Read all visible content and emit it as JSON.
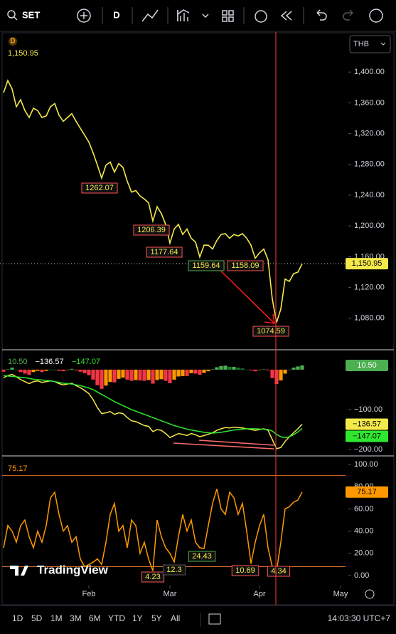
{
  "toolbar": {
    "symbol": "SET",
    "interval": "D"
  },
  "badge": "D",
  "currency": "THB",
  "watermark": "TradingView",
  "ranges": [
    "1D",
    "5D",
    "1M",
    "3M",
    "6M",
    "YTD",
    "1Y",
    "5Y",
    "All"
  ],
  "clock": "14:03:30 UTC+7",
  "chart_data": [
    {
      "type": "line",
      "color": "#f5e94a",
      "last_label": "1,150.95",
      "values": [
        1373,
        1389,
        1378,
        1355,
        1364,
        1350,
        1341,
        1353,
        1350,
        1341,
        1343,
        1355,
        1359,
        1344,
        1336,
        1341,
        1346,
        1336,
        1327,
        1318,
        1309,
        1295,
        1279,
        1262.07,
        1279,
        1283,
        1270,
        1281,
        1276,
        1258,
        1244,
        1246,
        1239,
        1235,
        1230,
        1206.39,
        1225,
        1216,
        1202,
        1177.64,
        1196,
        1202,
        1189,
        1196,
        1184,
        1179,
        1159.64,
        1175,
        1175,
        1170,
        1181,
        1189,
        1190,
        1184,
        1189,
        1187,
        1190,
        1184,
        1175,
        1158.09,
        1165,
        1170,
        1156,
        1105,
        1074.59,
        1092,
        1131,
        1128,
        1138,
        1140,
        1150.95
      ],
      "xlim": [
        -0.83,
        80.83
      ],
      "xticks": [
        {
          "value": 20,
          "label": "Feb"
        },
        {
          "value": 39,
          "label": "Mar"
        },
        {
          "value": 60,
          "label": "Apr"
        },
        {
          "value": 79,
          "label": "May"
        }
      ],
      "ylim": [
        1040,
        1452
      ],
      "yticks": [
        {
          "value": 1080,
          "label": "1,080.00"
        },
        {
          "value": 1120,
          "label": "1,120.00"
        },
        {
          "value": 1160,
          "label": "1,160.00"
        },
        {
          "value": 1200,
          "label": "1,200.00"
        },
        {
          "value": 1240,
          "label": "1,240.00"
        },
        {
          "value": 1280,
          "label": "1,280.00"
        },
        {
          "value": 1320,
          "label": "1,320.00"
        },
        {
          "value": 1360,
          "label": "1,360.00"
        },
        {
          "value": 1400,
          "label": "1,400.00"
        }
      ]
    },
    {
      "type": "combo",
      "ylim": [
        -216,
        48
      ],
      "yticks": [
        {
          "value": -100,
          "label": "−100.00"
        },
        {
          "value": -200,
          "label": "−200.00"
        }
      ],
      "series": [
        {
          "type": "bar",
          "last_label": "10.50",
          "color": "#4caf50",
          "colors": {
            "pos_up": "#4caf50",
            "pos_down": "#1b7a3a",
            "neg_down": "#f23645",
            "neg_up": "#ff9800"
          },
          "values": [
            -5,
            1,
            5,
            0,
            -6,
            -10,
            -13,
            -6,
            -3,
            -6,
            -3,
            0,
            0,
            -3,
            -4,
            -1,
            2,
            -2,
            -5,
            -9,
            -14,
            -25,
            -39,
            -48,
            -40,
            -31,
            -32,
            -23,
            -20,
            -25,
            -28,
            -26,
            -27,
            -28,
            -26,
            -35,
            -26,
            -24,
            -28,
            -34,
            -25,
            -17,
            -16,
            -16,
            -9,
            -10,
            -13,
            -8,
            -4,
            1,
            6,
            9,
            10,
            7,
            7,
            5,
            3,
            0,
            -2,
            -4,
            -1,
            1,
            -2,
            -21,
            -36,
            -27,
            -10,
            0,
            5,
            8,
            10.5
          ]
        },
        {
          "type": "line",
          "last_label": "−136.57",
          "color": "#f5e94a",
          "values": [
            -20,
            -15,
            -12,
            -18,
            -25,
            -30,
            -35,
            -30,
            -28,
            -32,
            -30,
            -28,
            -30,
            -35,
            -38,
            -36,
            -34,
            -40,
            -45,
            -52,
            -60,
            -75,
            -95,
            -110,
            -108,
            -105,
            -112,
            -108,
            -110,
            -120,
            -128,
            -130,
            -135,
            -140,
            -142,
            -155,
            -150,
            -152,
            -160,
            -170,
            -165,
            -160,
            -162,
            -165,
            -160,
            -163,
            -168,
            -165,
            -162,
            -158,
            -152,
            -148,
            -145,
            -146,
            -144,
            -145,
            -146,
            -148,
            -150,
            -152,
            -150,
            -148,
            -152,
            -175,
            -198,
            -195,
            -180,
            -168,
            -158,
            -148,
            -136.57
          ]
        },
        {
          "type": "line",
          "last_label": "−147.07",
          "color": "#2ee82e",
          "values": [
            -15,
            -16,
            -17,
            -18,
            -19,
            -20,
            -22,
            -24,
            -25,
            -26,
            -27,
            -28,
            -30,
            -32,
            -34,
            -35,
            -36,
            -38,
            -40,
            -43,
            -46,
            -50,
            -56,
            -62,
            -68,
            -74,
            -80,
            -85,
            -90,
            -95,
            -100,
            -104,
            -108,
            -112,
            -116,
            -120,
            -124,
            -128,
            -132,
            -136,
            -140,
            -143,
            -146,
            -149,
            -151,
            -153,
            -155,
            -157,
            -158,
            -159,
            -158,
            -157,
            -155,
            -153,
            -151,
            -150,
            -149,
            -148,
            -148,
            -148,
            -149,
            -149,
            -150,
            -154,
            -162,
            -168,
            -170,
            -168,
            -163,
            -156,
            -147.07
          ]
        }
      ]
    },
    {
      "type": "line",
      "color": "#ff9800",
      "values": [
        25,
        45,
        40,
        30,
        45,
        50,
        35,
        25,
        40,
        30,
        45,
        70,
        75,
        55,
        40,
        45,
        30,
        35,
        15,
        8,
        10,
        12,
        15,
        10,
        30,
        55,
        65,
        40,
        45,
        25,
        50,
        45,
        20,
        30,
        15,
        4.23,
        50,
        35,
        25,
        20,
        12.3,
        35,
        55,
        40,
        50,
        30,
        25,
        24.43,
        45,
        65,
        78,
        60,
        55,
        75,
        70,
        55,
        65,
        40,
        10.69,
        30,
        45,
        55,
        25,
        8,
        4.34,
        30,
        60,
        62,
        66,
        68,
        75.17
      ],
      "levels": [
        90,
        8
      ],
      "ylim": [
        -9,
        106.4
      ],
      "yticks": [
        {
          "value": 0,
          "label": "0.00"
        },
        {
          "value": 20,
          "label": "20.00"
        },
        {
          "value": 40,
          "label": "40.00"
        },
        {
          "value": 60,
          "label": "60.00"
        },
        {
          "value": 80,
          "label": "80.00"
        },
        {
          "value": 100,
          "label": "100.00"
        }
      ]
    }
  ]
}
